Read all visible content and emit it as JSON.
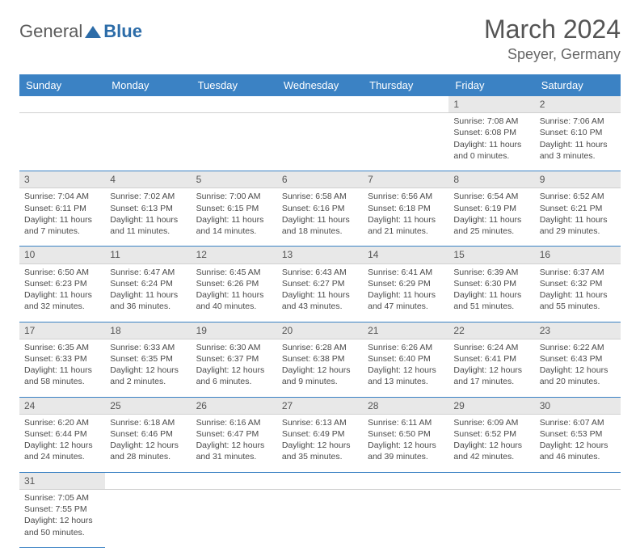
{
  "logo": {
    "text1": "General",
    "text2": "Blue"
  },
  "title": "March 2024",
  "location": "Speyer, Germany",
  "colors": {
    "header_bg": "#3b82c4",
    "header_text": "#ffffff",
    "daynum_bg": "#e8e8e8",
    "row_border": "#3b82c4",
    "logo_gray": "#5a5a5a",
    "logo_blue": "#2c6ca8"
  },
  "weekdays": [
    "Sunday",
    "Monday",
    "Tuesday",
    "Wednesday",
    "Thursday",
    "Friday",
    "Saturday"
  ],
  "weeks": [
    [
      null,
      null,
      null,
      null,
      null,
      {
        "n": "1",
        "sr": "Sunrise: 7:08 AM",
        "ss": "Sunset: 6:08 PM",
        "dl": "Daylight: 11 hours and 0 minutes."
      },
      {
        "n": "2",
        "sr": "Sunrise: 7:06 AM",
        "ss": "Sunset: 6:10 PM",
        "dl": "Daylight: 11 hours and 3 minutes."
      }
    ],
    [
      {
        "n": "3",
        "sr": "Sunrise: 7:04 AM",
        "ss": "Sunset: 6:11 PM",
        "dl": "Daylight: 11 hours and 7 minutes."
      },
      {
        "n": "4",
        "sr": "Sunrise: 7:02 AM",
        "ss": "Sunset: 6:13 PM",
        "dl": "Daylight: 11 hours and 11 minutes."
      },
      {
        "n": "5",
        "sr": "Sunrise: 7:00 AM",
        "ss": "Sunset: 6:15 PM",
        "dl": "Daylight: 11 hours and 14 minutes."
      },
      {
        "n": "6",
        "sr": "Sunrise: 6:58 AM",
        "ss": "Sunset: 6:16 PM",
        "dl": "Daylight: 11 hours and 18 minutes."
      },
      {
        "n": "7",
        "sr": "Sunrise: 6:56 AM",
        "ss": "Sunset: 6:18 PM",
        "dl": "Daylight: 11 hours and 21 minutes."
      },
      {
        "n": "8",
        "sr": "Sunrise: 6:54 AM",
        "ss": "Sunset: 6:19 PM",
        "dl": "Daylight: 11 hours and 25 minutes."
      },
      {
        "n": "9",
        "sr": "Sunrise: 6:52 AM",
        "ss": "Sunset: 6:21 PM",
        "dl": "Daylight: 11 hours and 29 minutes."
      }
    ],
    [
      {
        "n": "10",
        "sr": "Sunrise: 6:50 AM",
        "ss": "Sunset: 6:23 PM",
        "dl": "Daylight: 11 hours and 32 minutes."
      },
      {
        "n": "11",
        "sr": "Sunrise: 6:47 AM",
        "ss": "Sunset: 6:24 PM",
        "dl": "Daylight: 11 hours and 36 minutes."
      },
      {
        "n": "12",
        "sr": "Sunrise: 6:45 AM",
        "ss": "Sunset: 6:26 PM",
        "dl": "Daylight: 11 hours and 40 minutes."
      },
      {
        "n": "13",
        "sr": "Sunrise: 6:43 AM",
        "ss": "Sunset: 6:27 PM",
        "dl": "Daylight: 11 hours and 43 minutes."
      },
      {
        "n": "14",
        "sr": "Sunrise: 6:41 AM",
        "ss": "Sunset: 6:29 PM",
        "dl": "Daylight: 11 hours and 47 minutes."
      },
      {
        "n": "15",
        "sr": "Sunrise: 6:39 AM",
        "ss": "Sunset: 6:30 PM",
        "dl": "Daylight: 11 hours and 51 minutes."
      },
      {
        "n": "16",
        "sr": "Sunrise: 6:37 AM",
        "ss": "Sunset: 6:32 PM",
        "dl": "Daylight: 11 hours and 55 minutes."
      }
    ],
    [
      {
        "n": "17",
        "sr": "Sunrise: 6:35 AM",
        "ss": "Sunset: 6:33 PM",
        "dl": "Daylight: 11 hours and 58 minutes."
      },
      {
        "n": "18",
        "sr": "Sunrise: 6:33 AM",
        "ss": "Sunset: 6:35 PM",
        "dl": "Daylight: 12 hours and 2 minutes."
      },
      {
        "n": "19",
        "sr": "Sunrise: 6:30 AM",
        "ss": "Sunset: 6:37 PM",
        "dl": "Daylight: 12 hours and 6 minutes."
      },
      {
        "n": "20",
        "sr": "Sunrise: 6:28 AM",
        "ss": "Sunset: 6:38 PM",
        "dl": "Daylight: 12 hours and 9 minutes."
      },
      {
        "n": "21",
        "sr": "Sunrise: 6:26 AM",
        "ss": "Sunset: 6:40 PM",
        "dl": "Daylight: 12 hours and 13 minutes."
      },
      {
        "n": "22",
        "sr": "Sunrise: 6:24 AM",
        "ss": "Sunset: 6:41 PM",
        "dl": "Daylight: 12 hours and 17 minutes."
      },
      {
        "n": "23",
        "sr": "Sunrise: 6:22 AM",
        "ss": "Sunset: 6:43 PM",
        "dl": "Daylight: 12 hours and 20 minutes."
      }
    ],
    [
      {
        "n": "24",
        "sr": "Sunrise: 6:20 AM",
        "ss": "Sunset: 6:44 PM",
        "dl": "Daylight: 12 hours and 24 minutes."
      },
      {
        "n": "25",
        "sr": "Sunrise: 6:18 AM",
        "ss": "Sunset: 6:46 PM",
        "dl": "Daylight: 12 hours and 28 minutes."
      },
      {
        "n": "26",
        "sr": "Sunrise: 6:16 AM",
        "ss": "Sunset: 6:47 PM",
        "dl": "Daylight: 12 hours and 31 minutes."
      },
      {
        "n": "27",
        "sr": "Sunrise: 6:13 AM",
        "ss": "Sunset: 6:49 PM",
        "dl": "Daylight: 12 hours and 35 minutes."
      },
      {
        "n": "28",
        "sr": "Sunrise: 6:11 AM",
        "ss": "Sunset: 6:50 PM",
        "dl": "Daylight: 12 hours and 39 minutes."
      },
      {
        "n": "29",
        "sr": "Sunrise: 6:09 AM",
        "ss": "Sunset: 6:52 PM",
        "dl": "Daylight: 12 hours and 42 minutes."
      },
      {
        "n": "30",
        "sr": "Sunrise: 6:07 AM",
        "ss": "Sunset: 6:53 PM",
        "dl": "Daylight: 12 hours and 46 minutes."
      }
    ],
    [
      {
        "n": "31",
        "sr": "Sunrise: 7:05 AM",
        "ss": "Sunset: 7:55 PM",
        "dl": "Daylight: 12 hours and 50 minutes."
      },
      null,
      null,
      null,
      null,
      null,
      null
    ]
  ]
}
